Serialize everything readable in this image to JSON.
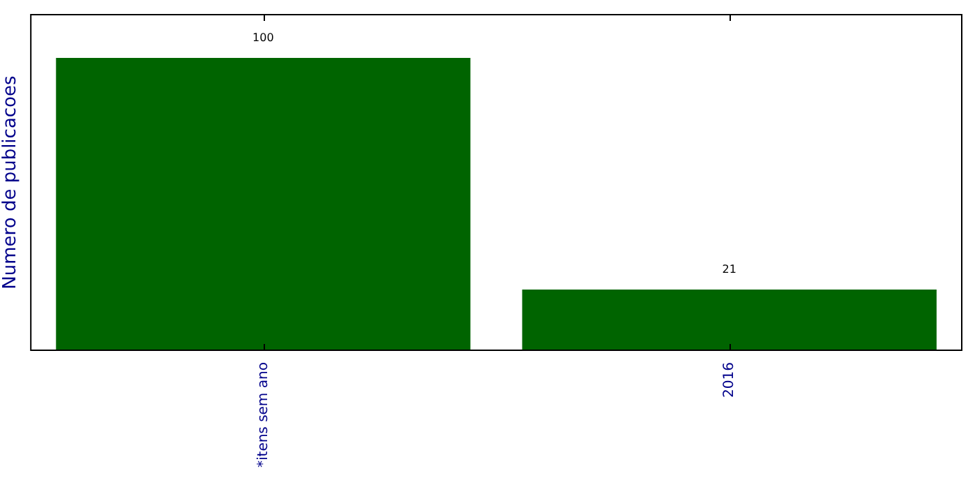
{
  "chart_data": {
    "type": "bar",
    "ylabel": "Numero de publicacoes",
    "categories": [
      "*itens sem ano",
      "2016"
    ],
    "values": [
      100,
      21
    ],
    "color": "#006400",
    "ylim": [
      0,
      115
    ],
    "tick_labels": "x",
    "data_labels": true,
    "grid": false,
    "legend": false
  }
}
